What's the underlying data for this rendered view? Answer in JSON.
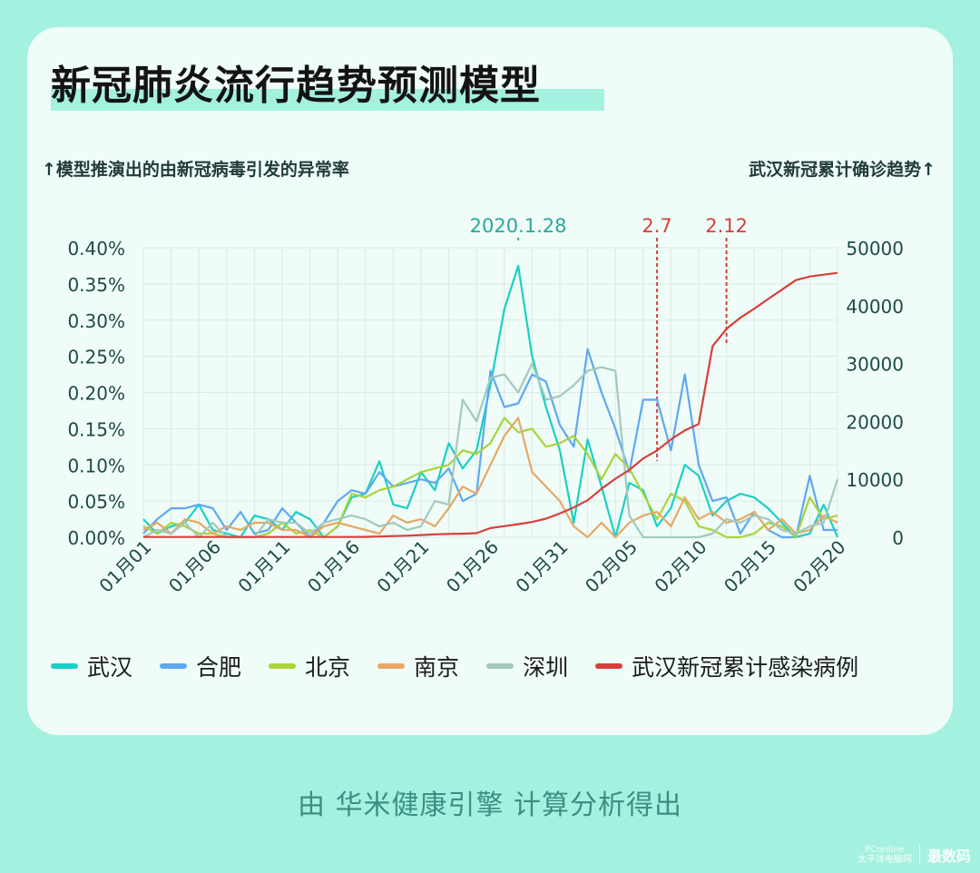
{
  "title": "新冠肺炎流行趋势预测模型",
  "left_axis_caption": "↑模型推演出的由新冠病毒引发的异常率",
  "right_axis_caption": "武汉新冠累计确诊趋势↑",
  "footer": "由 华米健康引擎 计算分析得出",
  "watermark": {
    "brand": "PConline",
    "brand_sub": "太平洋电脑网",
    "label": "最数码"
  },
  "chart_data": {
    "type": "line",
    "x": [
      "01月01",
      "01月02",
      "01月03",
      "01月04",
      "01月05",
      "01月06",
      "01月07",
      "01月08",
      "01月09",
      "01月10",
      "01月11",
      "01月12",
      "01月13",
      "01月14",
      "01月15",
      "01月16",
      "01月17",
      "01月18",
      "01月19",
      "01月20",
      "01月21",
      "01月22",
      "01月23",
      "01月24",
      "01月25",
      "01月26",
      "01月27",
      "01月28",
      "01月29",
      "01月30",
      "01月31",
      "02月01",
      "02月02",
      "02月03",
      "02月04",
      "02月05",
      "02月06",
      "02月07",
      "02月08",
      "02月09",
      "02月10",
      "02月11",
      "02月12",
      "02月13",
      "02月14",
      "02月15",
      "02月16",
      "02月17",
      "02月18",
      "02月19",
      "02月20"
    ],
    "x_ticks": [
      "01月01",
      "01月06",
      "01月11",
      "01月16",
      "01月21",
      "01月26",
      "01月31",
      "02月05",
      "02月10",
      "02月15",
      "02月20"
    ],
    "y_left": {
      "ticks": [
        "0.00%",
        "0.05%",
        "0.10%",
        "0.15%",
        "0.20%",
        "0.25%",
        "0.30%",
        "0.35%",
        "0.40%"
      ],
      "ylim": [
        0,
        0.4
      ],
      "unit": "%"
    },
    "y_right": {
      "ticks": [
        "0",
        "10000",
        "20000",
        "30000",
        "40000",
        "50000"
      ],
      "ylim": [
        0,
        50000
      ]
    },
    "series": [
      {
        "name": "武汉",
        "axis": "left",
        "color": "#19d0c4",
        "values": [
          0.025,
          0.005,
          0.015,
          0.02,
          0.045,
          0.01,
          0.005,
          0.0,
          0.03,
          0.025,
          0.01,
          0.035,
          0.025,
          0.0,
          0.015,
          0.055,
          0.06,
          0.105,
          0.045,
          0.04,
          0.09,
          0.065,
          0.13,
          0.095,
          0.12,
          0.21,
          0.315,
          0.375,
          0.25,
          0.18,
          0.12,
          0.02,
          0.135,
          0.07,
          0.0,
          0.075,
          0.065,
          0.015,
          0.04,
          0.1,
          0.085,
          0.03,
          0.05,
          0.06,
          0.055,
          0.04,
          0.02,
          0.0,
          0.005,
          0.045,
          0.0
        ]
      },
      {
        "name": "合肥",
        "axis": "left",
        "color": "#5fa8f2",
        "values": [
          0.005,
          0.025,
          0.04,
          0.04,
          0.045,
          0.04,
          0.01,
          0.035,
          0.005,
          0.01,
          0.04,
          0.02,
          0.0,
          0.02,
          0.05,
          0.065,
          0.06,
          0.09,
          0.07,
          0.075,
          0.08,
          0.075,
          0.095,
          0.05,
          0.06,
          0.23,
          0.18,
          0.185,
          0.225,
          0.215,
          0.155,
          0.125,
          0.26,
          0.2,
          0.15,
          0.09,
          0.19,
          0.19,
          0.12,
          0.225,
          0.1,
          0.05,
          0.055,
          0.005,
          0.035,
          0.01,
          0.0,
          0.0,
          0.085,
          0.01,
          0.01
        ]
      },
      {
        "name": "北京",
        "axis": "left",
        "color": "#a9d43b",
        "values": [
          0.015,
          0.005,
          0.02,
          0.015,
          0.005,
          0.005,
          0.0,
          0.0,
          0.0,
          0.005,
          0.02,
          0.005,
          0.01,
          0.0,
          0.015,
          0.06,
          0.055,
          0.065,
          0.07,
          0.08,
          0.09,
          0.095,
          0.1,
          0.12,
          0.115,
          0.13,
          0.165,
          0.145,
          0.15,
          0.125,
          0.13,
          0.14,
          0.115,
          0.08,
          0.115,
          0.095,
          0.06,
          0.025,
          0.06,
          0.05,
          0.015,
          0.01,
          0.0,
          0.0,
          0.005,
          0.02,
          0.015,
          0.0,
          0.055,
          0.025,
          0.03
        ]
      },
      {
        "name": "南京",
        "axis": "left",
        "color": "#e8a864",
        "values": [
          0.01,
          0.02,
          0.005,
          0.025,
          0.02,
          0.005,
          0.015,
          0.01,
          0.02,
          0.02,
          0.01,
          0.01,
          0.0,
          0.015,
          0.02,
          0.015,
          0.01,
          0.005,
          0.03,
          0.02,
          0.025,
          0.015,
          0.04,
          0.07,
          0.06,
          0.1,
          0.14,
          0.165,
          0.09,
          0.07,
          0.05,
          0.015,
          0.0,
          0.02,
          0.0,
          0.02,
          0.03,
          0.035,
          0.015,
          0.055,
          0.025,
          0.035,
          0.02,
          0.025,
          0.035,
          0.01,
          0.025,
          0.005,
          0.01,
          0.03,
          0.02
        ]
      },
      {
        "name": "深圳",
        "axis": "left",
        "color": "#a3c9bc",
        "values": [
          0.0,
          0.01,
          0.005,
          0.02,
          0.0,
          0.02,
          0.0,
          0.0,
          0.0,
          0.025,
          0.02,
          0.02,
          0.005,
          0.02,
          0.025,
          0.03,
          0.025,
          0.015,
          0.02,
          0.01,
          0.015,
          0.05,
          0.045,
          0.19,
          0.16,
          0.22,
          0.225,
          0.2,
          0.24,
          0.19,
          0.195,
          0.21,
          0.23,
          0.235,
          0.23,
          0.03,
          0.0,
          0.0,
          0.0,
          0.0,
          0.0,
          0.005,
          0.025,
          0.02,
          0.03,
          0.025,
          0.01,
          0.005,
          0.015,
          0.02,
          0.08
        ]
      },
      {
        "name": "武汉新冠累计感染病例",
        "axis": "right",
        "color": "#d6403b",
        "values": [
          40,
          40,
          40,
          41,
          41,
          41,
          41,
          41,
          41,
          41,
          41,
          41,
          41,
          41,
          41,
          41,
          62,
          121,
          198,
          270,
          375,
          495,
          572,
          618,
          698,
          1590,
          1905,
          2261,
          2639,
          3215,
          4109,
          5142,
          6384,
          8351,
          10117,
          11618,
          13603,
          14982,
          16902,
          18454,
          19558,
          32994,
          35991,
          37914,
          39462,
          41152,
          42752,
          44412,
          45027,
          45346,
          45660
        ]
      }
    ],
    "annotations": [
      {
        "label": "2020.1.28",
        "x": "01月28",
        "color": "#2aa79b"
      },
      {
        "label": "2.7",
        "x": "02月07",
        "color": "#d6403b"
      },
      {
        "label": "2.12",
        "x": "02月12",
        "color": "#d6403b"
      }
    ],
    "grid": true,
    "legend": "bottom"
  }
}
